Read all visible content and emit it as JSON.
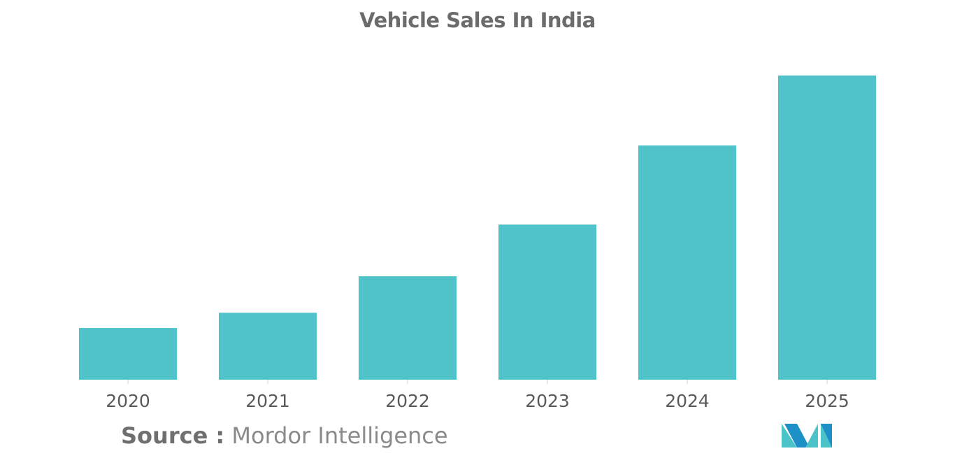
{
  "source": {
    "label": "Source :",
    "value": "Mordor Intelligence"
  },
  "logo": {
    "icon": "mordor-intelligence-logo-icon",
    "colors": [
      "#1e90c8",
      "#4cc3c9"
    ]
  },
  "colors": {
    "bar": "#4fc3c9",
    "title": "#6b6b6b",
    "tick_label": "#5a5a5a",
    "axis": "#d0d0d0"
  },
  "chart_data": {
    "type": "bar",
    "title": "Vehicle Sales In India",
    "xlabel": "",
    "ylabel": "",
    "categories": [
      "2020",
      "2021",
      "2022",
      "2023",
      "2024",
      "2025"
    ],
    "values": [
      17,
      22,
      34,
      51,
      77,
      100
    ],
    "ylim": [
      0,
      100
    ],
    "grid": false,
    "legend": "none",
    "value_axis_shown": false
  }
}
